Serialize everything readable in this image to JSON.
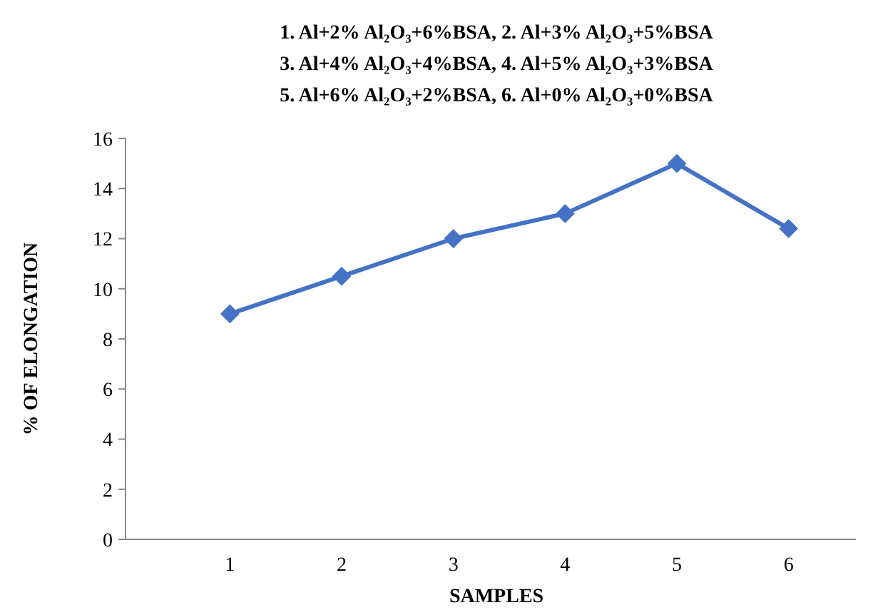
{
  "chart_data": {
    "type": "line",
    "title": "1. Al+2% Al₂O₃+6%BSA,  2. Al+3% Al₂O₃+5%BSA\n3. Al+4% Al₂O₃+4%BSA, 4. Al+5% Al₂O₃+3%BSA\n5. Al+6% Al₂O₃+2%BSA, 6. Al+0% Al₂O₃+0%BSA",
    "xlabel": "SAMPLES",
    "ylabel": "% OF ELONGATION",
    "categories": [
      "1",
      "2",
      "3",
      "4",
      "5",
      "6"
    ],
    "series": [
      {
        "color": "#4472c4",
        "values": [
          9,
          10.5,
          12,
          13,
          15,
          12.4
        ]
      }
    ],
    "ylim": [
      0,
      16
    ],
    "yticks": [
      0,
      2,
      4,
      6,
      8,
      10,
      12,
      14,
      16
    ],
    "grid": false,
    "marker": "diamond",
    "line_style": "solid"
  }
}
